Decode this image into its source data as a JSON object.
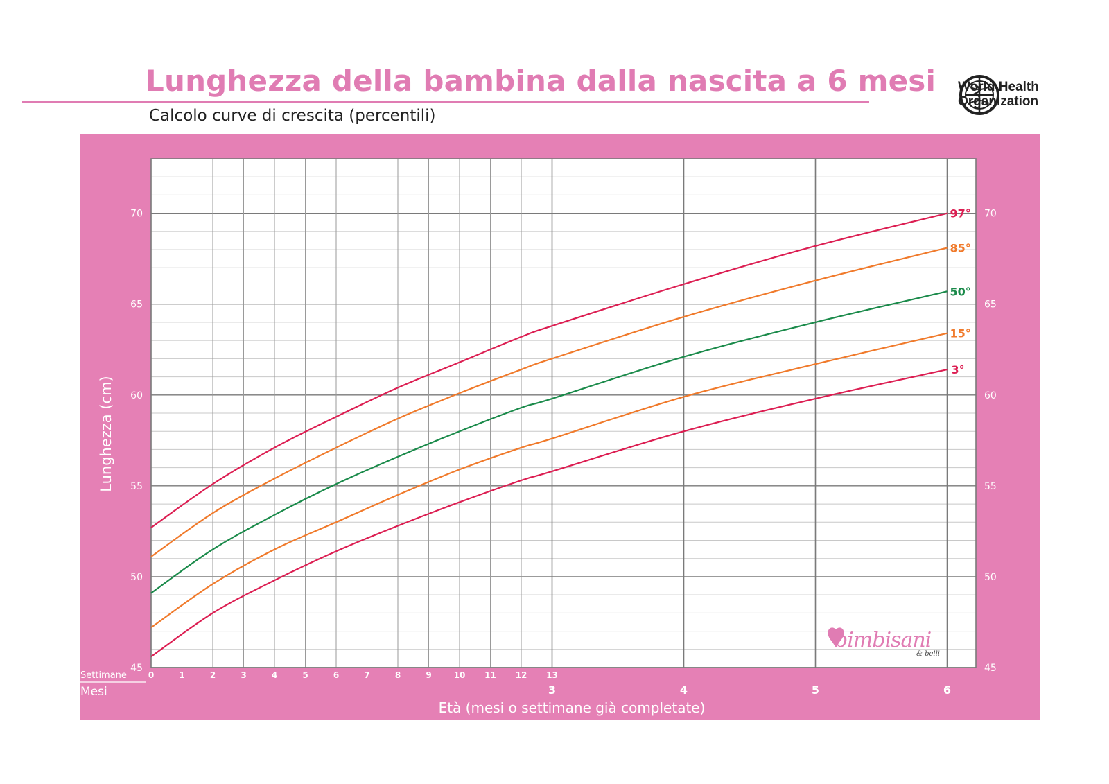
{
  "header": {
    "title": "Lunghezza della bambina dalla nascita a 6 mesi",
    "subtitle": "Calcolo curve di crescita (percentili)",
    "organization_line1": "World Health",
    "organization_line2": "Organization"
  },
  "brand": {
    "name": "bimbisani",
    "tagline": "& belli"
  },
  "colors": {
    "panel": "#e580b5",
    "title": "#e07cb3",
    "p97": "#dc1e52",
    "p85": "#f07a2b",
    "p50": "#1a8a4a",
    "p15": "#f07a2b",
    "p3": "#dc1e52"
  },
  "chart_data": {
    "type": "line",
    "ylabel": "Lunghezza (cm)",
    "xlabel": "Età (mesi o settimane già completate)",
    "ylim": [
      45,
      73
    ],
    "xlim_months": [
      0,
      6.2
    ],
    "y_ticks": [
      45,
      50,
      55,
      60,
      65,
      70
    ],
    "x_weeks_label": "Settimane",
    "x_weeks_ticks": [
      "0",
      "1",
      "2",
      "3",
      "4",
      "5",
      "6",
      "7",
      "8",
      "9",
      "10",
      "11",
      "12",
      "13"
    ],
    "x_months_label": "Mesi",
    "x_months_ticks": [
      "3",
      "4",
      "5",
      "6"
    ],
    "grid": true,
    "series": [
      {
        "name": "97°",
        "color": "#dc1e52",
        "points": [
          [
            0,
            52.7
          ],
          [
            2,
            55.1
          ],
          [
            4,
            57.1
          ],
          [
            6,
            58.8
          ],
          [
            8,
            60.4
          ],
          [
            10,
            61.8
          ],
          [
            12,
            63.2
          ],
          [
            13,
            63.8
          ],
          [
            4.0,
            66.1
          ],
          [
            5.0,
            68.2
          ],
          [
            6.0,
            70.0
          ]
        ]
      },
      {
        "name": "85°",
        "color": "#f07a2b",
        "points": [
          [
            0,
            51.1
          ],
          [
            2,
            53.5
          ],
          [
            4,
            55.4
          ],
          [
            6,
            57.1
          ],
          [
            8,
            58.7
          ],
          [
            10,
            60.1
          ],
          [
            12,
            61.4
          ],
          [
            13,
            62.0
          ],
          [
            4.0,
            64.3
          ],
          [
            5.0,
            66.3
          ],
          [
            6.0,
            68.1
          ]
        ]
      },
      {
        "name": "50°",
        "color": "#1a8a4a",
        "points": [
          [
            0,
            49.1
          ],
          [
            2,
            51.5
          ],
          [
            4,
            53.4
          ],
          [
            6,
            55.1
          ],
          [
            8,
            56.6
          ],
          [
            10,
            58.0
          ],
          [
            12,
            59.3
          ],
          [
            13,
            59.8
          ],
          [
            4.0,
            62.1
          ],
          [
            5.0,
            64.0
          ],
          [
            6.0,
            65.7
          ]
        ]
      },
      {
        "name": "15°",
        "color": "#f07a2b",
        "points": [
          [
            0,
            47.2
          ],
          [
            2,
            49.6
          ],
          [
            4,
            51.5
          ],
          [
            6,
            53.0
          ],
          [
            8,
            54.5
          ],
          [
            10,
            55.9
          ],
          [
            12,
            57.1
          ],
          [
            13,
            57.6
          ],
          [
            4.0,
            59.9
          ],
          [
            5.0,
            61.7
          ],
          [
            6.0,
            63.4
          ]
        ]
      },
      {
        "name": "3°",
        "color": "#dc1e52",
        "points": [
          [
            0,
            45.6
          ],
          [
            2,
            48.0
          ],
          [
            4,
            49.8
          ],
          [
            6,
            51.4
          ],
          [
            8,
            52.8
          ],
          [
            10,
            54.1
          ],
          [
            12,
            55.3
          ],
          [
            13,
            55.8
          ],
          [
            4.0,
            58.0
          ],
          [
            5.0,
            59.8
          ],
          [
            6.0,
            61.4
          ]
        ]
      }
    ]
  }
}
